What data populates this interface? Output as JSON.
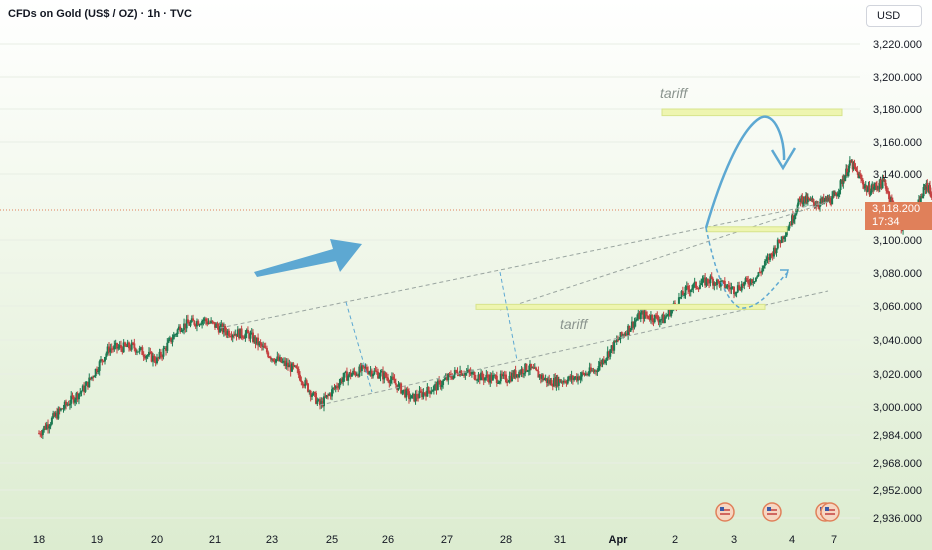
{
  "header": {
    "title": "CFDs on Gold (US$ / OZ) · 1h · TVC"
  },
  "currency": {
    "label": "USD"
  },
  "last_price": {
    "value": "3,118.200",
    "countdown": "17:34",
    "color": "#e0805a"
  },
  "colors": {
    "up": "#1c7a52",
    "down": "#c44040",
    "arrow": "#5da8d2",
    "zone": "#eef5b0",
    "trendline": "#9aa5a0",
    "price_line": "#e0805a"
  },
  "chart_data": {
    "type": "candlestick",
    "title": "CFDs on Gold (US$ / OZ) · 1h · TVC",
    "y_ticks": [
      3220,
      3200,
      3180,
      3160,
      3140,
      3100,
      3080,
      3060,
      3040,
      3020,
      3000,
      2984,
      2968,
      2952,
      2936
    ],
    "y_tick_labels": [
      "3,220.000",
      "3,200.000",
      "3,180.000",
      "3,160.000",
      "3,140.000",
      "3,100.000",
      "3,080.000",
      "3,060.000",
      "3,040.000",
      "3,020.000",
      "3,000.000",
      "2,984.000",
      "2,968.000",
      "2,952.000",
      "2,936.000"
    ],
    "x_ticks": [
      "18",
      "19",
      "20",
      "21",
      "23",
      "25",
      "26",
      "27",
      "28",
      "31",
      "Apr",
      "2",
      "3",
      "4",
      "7"
    ],
    "last_price": 3118.2,
    "price_path": [
      {
        "d": 0.0,
        "p": 2985
      },
      {
        "d": 0.4,
        "p": 2999
      },
      {
        "d": 0.8,
        "p": 3012
      },
      {
        "d": 1.2,
        "p": 3035
      },
      {
        "d": 1.6,
        "p": 3036
      },
      {
        "d": 2.0,
        "p": 3028
      },
      {
        "d": 2.4,
        "p": 3048
      },
      {
        "d": 2.8,
        "p": 3052
      },
      {
        "d": 3.2,
        "p": 3045
      },
      {
        "d": 3.6,
        "p": 3043
      },
      {
        "d": 4.0,
        "p": 3030
      },
      {
        "d": 4.4,
        "p": 3022
      },
      {
        "d": 4.8,
        "p": 3001
      },
      {
        "d": 5.2,
        "p": 3018
      },
      {
        "d": 5.6,
        "p": 3023
      },
      {
        "d": 6.0,
        "p": 3018
      },
      {
        "d": 6.4,
        "p": 3005
      },
      {
        "d": 6.8,
        "p": 3012
      },
      {
        "d": 7.2,
        "p": 3022
      },
      {
        "d": 7.6,
        "p": 3018
      },
      {
        "d": 8.0,
        "p": 3017
      },
      {
        "d": 8.4,
        "p": 3024
      },
      {
        "d": 8.8,
        "p": 3015
      },
      {
        "d": 9.2,
        "p": 3017
      },
      {
        "d": 9.6,
        "p": 3022
      },
      {
        "d": 10.0,
        "p": 3040
      },
      {
        "d": 10.4,
        "p": 3055
      },
      {
        "d": 10.8,
        "p": 3052
      },
      {
        "d": 11.2,
        "p": 3070
      },
      {
        "d": 11.6,
        "p": 3076
      },
      {
        "d": 12.0,
        "p": 3070
      },
      {
        "d": 12.4,
        "p": 3078
      },
      {
        "d": 12.8,
        "p": 3100
      },
      {
        "d": 13.2,
        "p": 3125
      },
      {
        "d": 13.6,
        "p": 3122
      },
      {
        "d": 14.0,
        "p": 3125
      },
      {
        "d": 14.4,
        "p": 3147
      },
      {
        "d": 14.8,
        "p": 3130
      },
      {
        "d": 15.2,
        "p": 3135
      },
      {
        "d": 15.6,
        "p": 3108
      },
      {
        "d": 16.0,
        "p": 3120
      },
      {
        "d": 16.2,
        "p": 3134
      },
      {
        "d": 16.5,
        "p": 3118
      }
    ],
    "annotations": [
      {
        "type": "text",
        "text": "tariff"
      },
      {
        "type": "text",
        "text": "tariff"
      },
      {
        "type": "zone",
        "y1": 3176,
        "y2": 3180
      },
      {
        "type": "zone",
        "y1": 3105,
        "y2": 3108
      },
      {
        "type": "zone",
        "y1": 3058,
        "y2": 3061
      }
    ]
  }
}
